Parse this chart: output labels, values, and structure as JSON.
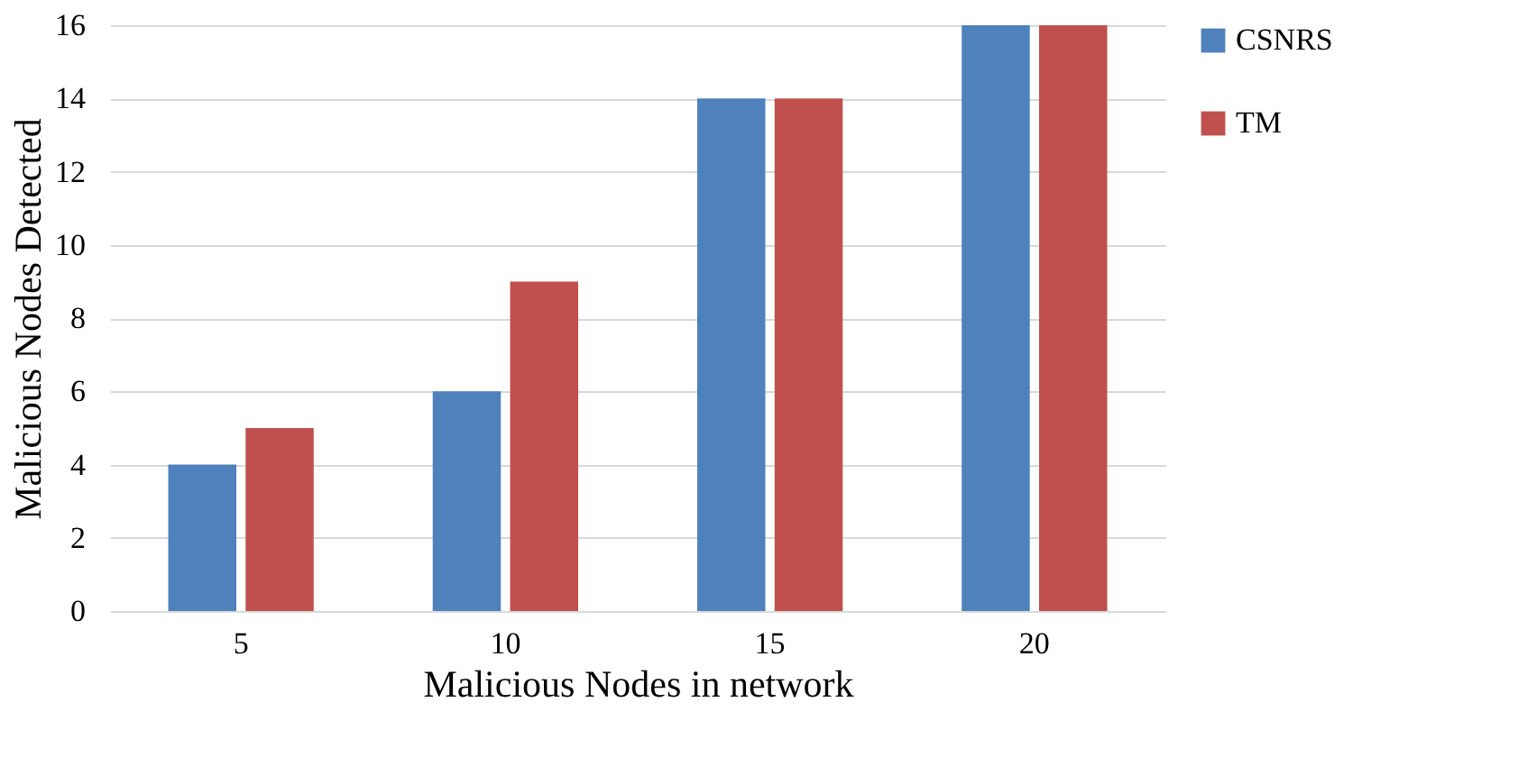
{
  "chart_data": {
    "type": "bar",
    "xlabel": "Malicious Nodes in network",
    "ylabel": "Malicious Nodes Detected",
    "categories": [
      "5",
      "10",
      "15",
      "20"
    ],
    "series": [
      {
        "name": "CSNRS",
        "color": "#4f81bd",
        "values": [
          4,
          6,
          14,
          16
        ]
      },
      {
        "name": "TM",
        "color": "#c0504d",
        "values": [
          5,
          9,
          14,
          16
        ]
      }
    ],
    "ylim": [
      0,
      16
    ],
    "yticks": [
      0,
      2,
      4,
      6,
      8,
      10,
      12,
      14,
      16
    ],
    "grid": "y",
    "legend": "right"
  }
}
